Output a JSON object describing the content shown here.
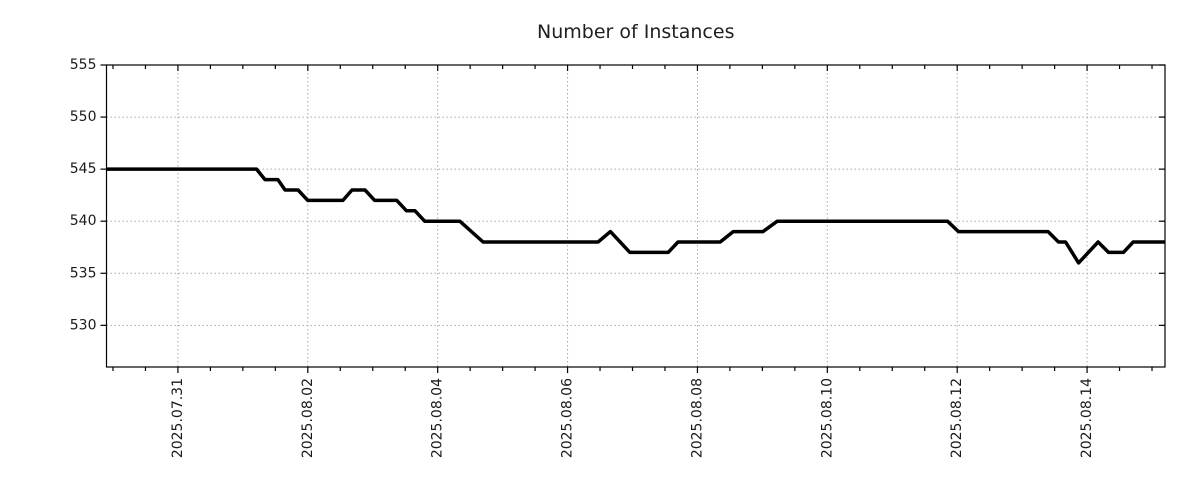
{
  "page_title": "Number of Instances",
  "chart_data": {
    "type": "line",
    "title": "Number of Instances",
    "x_axis": {
      "label": "",
      "unit": "days since 2025.07.31 00:00",
      "range_days": [
        -1.1,
        15.2
      ],
      "major_ticks_days": [
        0,
        2,
        4,
        6,
        8,
        10,
        12,
        14
      ],
      "major_tick_labels": [
        "2025.07.31",
        "2025.08.02",
        "2025.08.04",
        "2025.08.06",
        "2025.08.08",
        "2025.08.10",
        "2025.08.12",
        "2025.08.14"
      ],
      "minor_tick_step_days": 0.5,
      "grid": "dotted"
    },
    "y_axis": {
      "label": "",
      "range": [
        526,
        555
      ],
      "ticks": [
        530,
        535,
        540,
        545,
        550,
        555
      ],
      "grid": "dotted"
    },
    "legend_position": "none",
    "series": [
      {
        "name": "instances",
        "color": "#000000",
        "line_width": 3.5,
        "points_day_value": [
          [
            -1.1,
            545
          ],
          [
            1.21,
            545
          ],
          [
            1.34,
            544
          ],
          [
            1.54,
            544
          ],
          [
            1.65,
            543
          ],
          [
            1.85,
            543
          ],
          [
            2.0,
            542
          ],
          [
            2.54,
            542
          ],
          [
            2.68,
            543
          ],
          [
            2.88,
            543
          ],
          [
            3.03,
            542
          ],
          [
            3.37,
            542
          ],
          [
            3.52,
            541
          ],
          [
            3.65,
            541
          ],
          [
            3.8,
            540
          ],
          [
            4.34,
            540
          ],
          [
            4.7,
            538
          ],
          [
            6.47,
            538
          ],
          [
            6.66,
            539
          ],
          [
            6.96,
            537
          ],
          [
            7.55,
            537
          ],
          [
            7.7,
            538
          ],
          [
            8.35,
            538
          ],
          [
            8.55,
            539
          ],
          [
            9.01,
            539
          ],
          [
            9.23,
            540
          ],
          [
            11.85,
            540
          ],
          [
            12.02,
            539
          ],
          [
            13.4,
            539
          ],
          [
            13.56,
            538
          ],
          [
            13.67,
            538
          ],
          [
            13.87,
            536
          ],
          [
            14.17,
            538
          ],
          [
            14.33,
            537
          ],
          [
            14.56,
            537
          ],
          [
            14.71,
            538
          ],
          [
            15.2,
            538
          ]
        ]
      }
    ],
    "colors": {
      "line": "#000000",
      "grid": "#aaaaaa",
      "axis": "#000000",
      "text": "#1a1a1a",
      "background": "#ffffff"
    }
  }
}
